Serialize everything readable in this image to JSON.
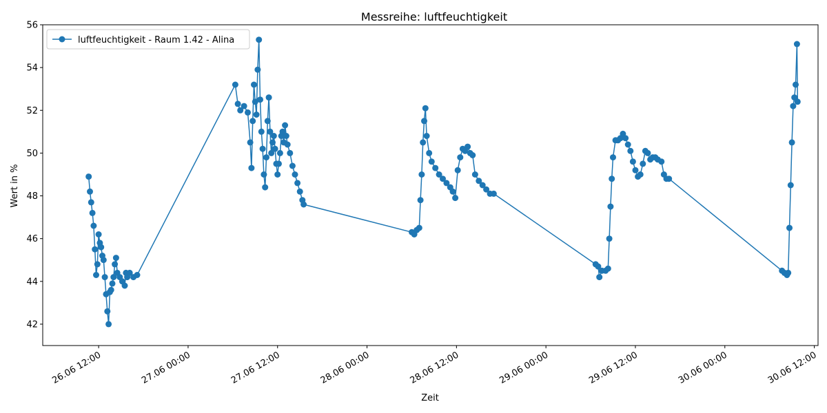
{
  "chart_data": {
    "type": "line",
    "title": "Messreihe: luftfeuchtigkeit",
    "xlabel": "Zeit",
    "ylabel": "Wert in %",
    "ylim": [
      41,
      56
    ],
    "xlim": [
      "2024-06-26T04:30",
      "2024-06-30T12:30"
    ],
    "yticks": [
      42,
      44,
      46,
      48,
      50,
      52,
      54,
      56
    ],
    "xticks": [
      {
        "t": "2024-06-26T12:00",
        "label": "26.06 12:00"
      },
      {
        "t": "2024-06-27T00:00",
        "label": "27.06 00:00"
      },
      {
        "t": "2024-06-27T12:00",
        "label": "27.06 12:00"
      },
      {
        "t": "2024-06-28T00:00",
        "label": "28.06 00:00"
      },
      {
        "t": "2024-06-28T12:00",
        "label": "28.06 12:00"
      },
      {
        "t": "2024-06-29T00:00",
        "label": "29.06 00:00"
      },
      {
        "t": "2024-06-29T12:00",
        "label": "29.06 12:00"
      },
      {
        "t": "2024-06-30T00:00",
        "label": "30.06 00:00"
      },
      {
        "t": "2024-06-30T12:00",
        "label": "30.06 12:00"
      }
    ],
    "grid": false,
    "legend_position": "top-left",
    "color": "#1f77b4",
    "series": [
      {
        "name": "luftfeuchtigkeit - Raum 1.42 - Alina",
        "marker": "circle",
        "points": [
          [
            "2024-06-26T10:40",
            48.9
          ],
          [
            "2024-06-26T10:50",
            48.2
          ],
          [
            "2024-06-26T11:00",
            47.7
          ],
          [
            "2024-06-26T11:10",
            47.2
          ],
          [
            "2024-06-26T11:20",
            46.6
          ],
          [
            "2024-06-26T11:30",
            45.5
          ],
          [
            "2024-06-26T11:40",
            44.3
          ],
          [
            "2024-06-26T11:50",
            44.8
          ],
          [
            "2024-06-26T12:00",
            46.2
          ],
          [
            "2024-06-26T12:10",
            45.8
          ],
          [
            "2024-06-26T12:20",
            45.6
          ],
          [
            "2024-06-26T12:30",
            45.2
          ],
          [
            "2024-06-26T12:40",
            45.0
          ],
          [
            "2024-06-26T12:50",
            44.2
          ],
          [
            "2024-06-26T13:00",
            43.4
          ],
          [
            "2024-06-26T13:10",
            42.6
          ],
          [
            "2024-06-26T13:20",
            42.0
          ],
          [
            "2024-06-26T13:30",
            43.5
          ],
          [
            "2024-06-26T13:40",
            43.6
          ],
          [
            "2024-06-26T13:50",
            43.9
          ],
          [
            "2024-06-26T14:00",
            44.2
          ],
          [
            "2024-06-26T14:10",
            44.8
          ],
          [
            "2024-06-26T14:20",
            45.1
          ],
          [
            "2024-06-26T14:30",
            44.4
          ],
          [
            "2024-06-26T14:50",
            44.2
          ],
          [
            "2024-06-26T15:10",
            44.0
          ],
          [
            "2024-06-26T15:30",
            43.8
          ],
          [
            "2024-06-26T15:40",
            44.4
          ],
          [
            "2024-06-26T15:50",
            44.2
          ],
          [
            "2024-06-26T16:10",
            44.4
          ],
          [
            "2024-06-26T16:40",
            44.2
          ],
          [
            "2024-06-26T17:10",
            44.3
          ],
          [
            "2024-06-27T06:20",
            53.2
          ],
          [
            "2024-06-27T06:40",
            52.3
          ],
          [
            "2024-06-27T07:00",
            52.0
          ],
          [
            "2024-06-27T07:30",
            52.2
          ],
          [
            "2024-06-27T08:00",
            51.9
          ],
          [
            "2024-06-27T08:20",
            50.5
          ],
          [
            "2024-06-27T08:30",
            49.3
          ],
          [
            "2024-06-27T08:40",
            51.5
          ],
          [
            "2024-06-27T08:50",
            53.2
          ],
          [
            "2024-06-27T09:00",
            52.4
          ],
          [
            "2024-06-27T09:10",
            51.8
          ],
          [
            "2024-06-27T09:20",
            53.9
          ],
          [
            "2024-06-27T09:30",
            55.3
          ],
          [
            "2024-06-27T09:40",
            52.5
          ],
          [
            "2024-06-27T09:50",
            51.0
          ],
          [
            "2024-06-27T10:00",
            50.2
          ],
          [
            "2024-06-27T10:10",
            49.0
          ],
          [
            "2024-06-27T10:20",
            48.4
          ],
          [
            "2024-06-27T10:30",
            49.8
          ],
          [
            "2024-06-27T10:40",
            51.5
          ],
          [
            "2024-06-27T10:50",
            52.6
          ],
          [
            "2024-06-27T11:00",
            51.0
          ],
          [
            "2024-06-27T11:10",
            50.0
          ],
          [
            "2024-06-27T11:20",
            50.5
          ],
          [
            "2024-06-27T11:30",
            50.8
          ],
          [
            "2024-06-27T11:40",
            50.2
          ],
          [
            "2024-06-27T11:50",
            49.5
          ],
          [
            "2024-06-27T12:00",
            49.0
          ],
          [
            "2024-06-27T12:10",
            49.5
          ],
          [
            "2024-06-27T12:20",
            50.0
          ],
          [
            "2024-06-27T12:30",
            50.8
          ],
          [
            "2024-06-27T12:40",
            51.0
          ],
          [
            "2024-06-27T12:50",
            50.5
          ],
          [
            "2024-06-27T13:00",
            51.3
          ],
          [
            "2024-06-27T13:10",
            50.8
          ],
          [
            "2024-06-27T13:20",
            50.4
          ],
          [
            "2024-06-27T13:40",
            50.0
          ],
          [
            "2024-06-27T14:00",
            49.4
          ],
          [
            "2024-06-27T14:20",
            49.0
          ],
          [
            "2024-06-27T14:40",
            48.6
          ],
          [
            "2024-06-27T15:00",
            48.2
          ],
          [
            "2024-06-27T15:20",
            47.8
          ],
          [
            "2024-06-27T15:30",
            47.6
          ],
          [
            "2024-06-28T06:00",
            46.3
          ],
          [
            "2024-06-28T06:20",
            46.2
          ],
          [
            "2024-06-28T06:40",
            46.4
          ],
          [
            "2024-06-28T07:00",
            46.5
          ],
          [
            "2024-06-28T07:10",
            47.8
          ],
          [
            "2024-06-28T07:20",
            49.0
          ],
          [
            "2024-06-28T07:30",
            50.5
          ],
          [
            "2024-06-28T07:40",
            51.5
          ],
          [
            "2024-06-28T07:50",
            52.1
          ],
          [
            "2024-06-28T08:00",
            50.8
          ],
          [
            "2024-06-28T08:20",
            50.0
          ],
          [
            "2024-06-28T08:40",
            49.6
          ],
          [
            "2024-06-28T09:10",
            49.3
          ],
          [
            "2024-06-28T09:40",
            49.0
          ],
          [
            "2024-06-28T10:10",
            48.8
          ],
          [
            "2024-06-28T10:40",
            48.6
          ],
          [
            "2024-06-28T11:10",
            48.4
          ],
          [
            "2024-06-28T11:30",
            48.2
          ],
          [
            "2024-06-28T11:50",
            47.9
          ],
          [
            "2024-06-28T12:10",
            49.2
          ],
          [
            "2024-06-28T12:30",
            49.8
          ],
          [
            "2024-06-28T12:50",
            50.2
          ],
          [
            "2024-06-28T13:10",
            50.1
          ],
          [
            "2024-06-28T13:30",
            50.3
          ],
          [
            "2024-06-28T13:50",
            50.0
          ],
          [
            "2024-06-28T14:10",
            49.9
          ],
          [
            "2024-06-28T14:30",
            49.0
          ],
          [
            "2024-06-28T15:00",
            48.7
          ],
          [
            "2024-06-28T15:30",
            48.5
          ],
          [
            "2024-06-28T16:00",
            48.3
          ],
          [
            "2024-06-28T16:30",
            48.1
          ],
          [
            "2024-06-28T17:00",
            48.1
          ],
          [
            "2024-06-29T06:40",
            44.8
          ],
          [
            "2024-06-29T07:00",
            44.7
          ],
          [
            "2024-06-29T07:10",
            44.2
          ],
          [
            "2024-06-29T07:30",
            44.5
          ],
          [
            "2024-06-29T08:00",
            44.5
          ],
          [
            "2024-06-29T08:20",
            44.6
          ],
          [
            "2024-06-29T08:30",
            46.0
          ],
          [
            "2024-06-29T08:40",
            47.5
          ],
          [
            "2024-06-29T08:50",
            48.8
          ],
          [
            "2024-06-29T09:00",
            49.8
          ],
          [
            "2024-06-29T09:20",
            50.6
          ],
          [
            "2024-06-29T09:40",
            50.6
          ],
          [
            "2024-06-29T10:00",
            50.7
          ],
          [
            "2024-06-29T10:20",
            50.9
          ],
          [
            "2024-06-29T10:40",
            50.7
          ],
          [
            "2024-06-29T11:00",
            50.4
          ],
          [
            "2024-06-29T11:20",
            50.1
          ],
          [
            "2024-06-29T11:40",
            49.6
          ],
          [
            "2024-06-29T12:00",
            49.2
          ],
          [
            "2024-06-29T12:20",
            48.9
          ],
          [
            "2024-06-29T12:40",
            49.0
          ],
          [
            "2024-06-29T13:00",
            49.5
          ],
          [
            "2024-06-29T13:20",
            50.1
          ],
          [
            "2024-06-29T13:40",
            50.0
          ],
          [
            "2024-06-29T14:00",
            49.7
          ],
          [
            "2024-06-29T14:20",
            49.8
          ],
          [
            "2024-06-29T14:40",
            49.8
          ],
          [
            "2024-06-29T15:00",
            49.7
          ],
          [
            "2024-06-29T15:30",
            49.6
          ],
          [
            "2024-06-29T15:50",
            49.0
          ],
          [
            "2024-06-29T16:10",
            48.8
          ],
          [
            "2024-06-29T16:30",
            48.8
          ],
          [
            "2024-06-30T07:40",
            44.5
          ],
          [
            "2024-06-30T08:00",
            44.4
          ],
          [
            "2024-06-30T08:20",
            44.3
          ],
          [
            "2024-06-30T08:30",
            44.4
          ],
          [
            "2024-06-30T08:40",
            46.5
          ],
          [
            "2024-06-30T08:50",
            48.5
          ],
          [
            "2024-06-30T09:00",
            50.5
          ],
          [
            "2024-06-30T09:10",
            52.2
          ],
          [
            "2024-06-30T09:20",
            52.6
          ],
          [
            "2024-06-30T09:30",
            53.2
          ],
          [
            "2024-06-30T09:40",
            55.1
          ],
          [
            "2024-06-30T09:45",
            52.4
          ]
        ]
      }
    ]
  }
}
